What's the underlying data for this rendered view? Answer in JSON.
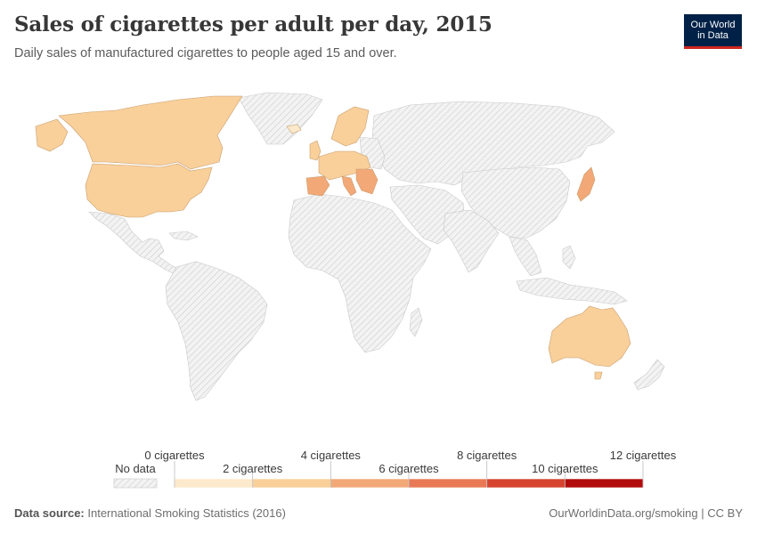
{
  "header": {
    "title": "Sales of cigarettes per adult per day, 2015",
    "subtitle": "Daily sales of manufactured cigarettes to people aged 15 and over.",
    "logo_line1": "Our World",
    "logo_line2": "in Data"
  },
  "legend": {
    "no_data_label": "No data",
    "bins": [
      {
        "from": 0,
        "to": 2,
        "color": "#fde9cb"
      },
      {
        "from": 2,
        "to": 4,
        "color": "#f9cf9a"
      },
      {
        "from": 4,
        "to": 6,
        "color": "#f2a877"
      },
      {
        "from": 6,
        "to": 8,
        "color": "#e97956"
      },
      {
        "from": 8,
        "to": 10,
        "color": "#d64430"
      },
      {
        "from": 10,
        "to": 12,
        "color": "#b20b0b"
      }
    ],
    "labels": [
      "0 cigarettes",
      "2 cigarettes",
      "4 cigarettes",
      "6 cigarettes",
      "8 cigarettes",
      "10 cigarettes",
      "12 cigarettes"
    ]
  },
  "chart_data": {
    "type": "choropleth",
    "year": 2015,
    "unit": "cigarettes",
    "regions_with_data": [
      {
        "region": "Canada",
        "bin": [
          2,
          4
        ]
      },
      {
        "region": "United States",
        "bin": [
          2,
          4
        ]
      },
      {
        "region": "Western Europe",
        "bin": [
          2,
          6
        ]
      },
      {
        "region": "Japan",
        "bin": [
          4,
          6
        ]
      },
      {
        "region": "Australia",
        "bin": [
          2,
          4
        ]
      }
    ],
    "no_data_regions": [
      "Latin America",
      "Africa",
      "Russia",
      "Asia",
      "Middle East"
    ]
  },
  "footer": {
    "source_label": "Data source:",
    "source_text": "International Smoking Statistics (2016)",
    "url": "OurWorldinData.org/smoking",
    "license": "CC BY"
  },
  "colors": {
    "nodata_fill": "#f0f0f0",
    "nodata_hatch": "#d0d0d0",
    "border": "#bdbdbd"
  }
}
